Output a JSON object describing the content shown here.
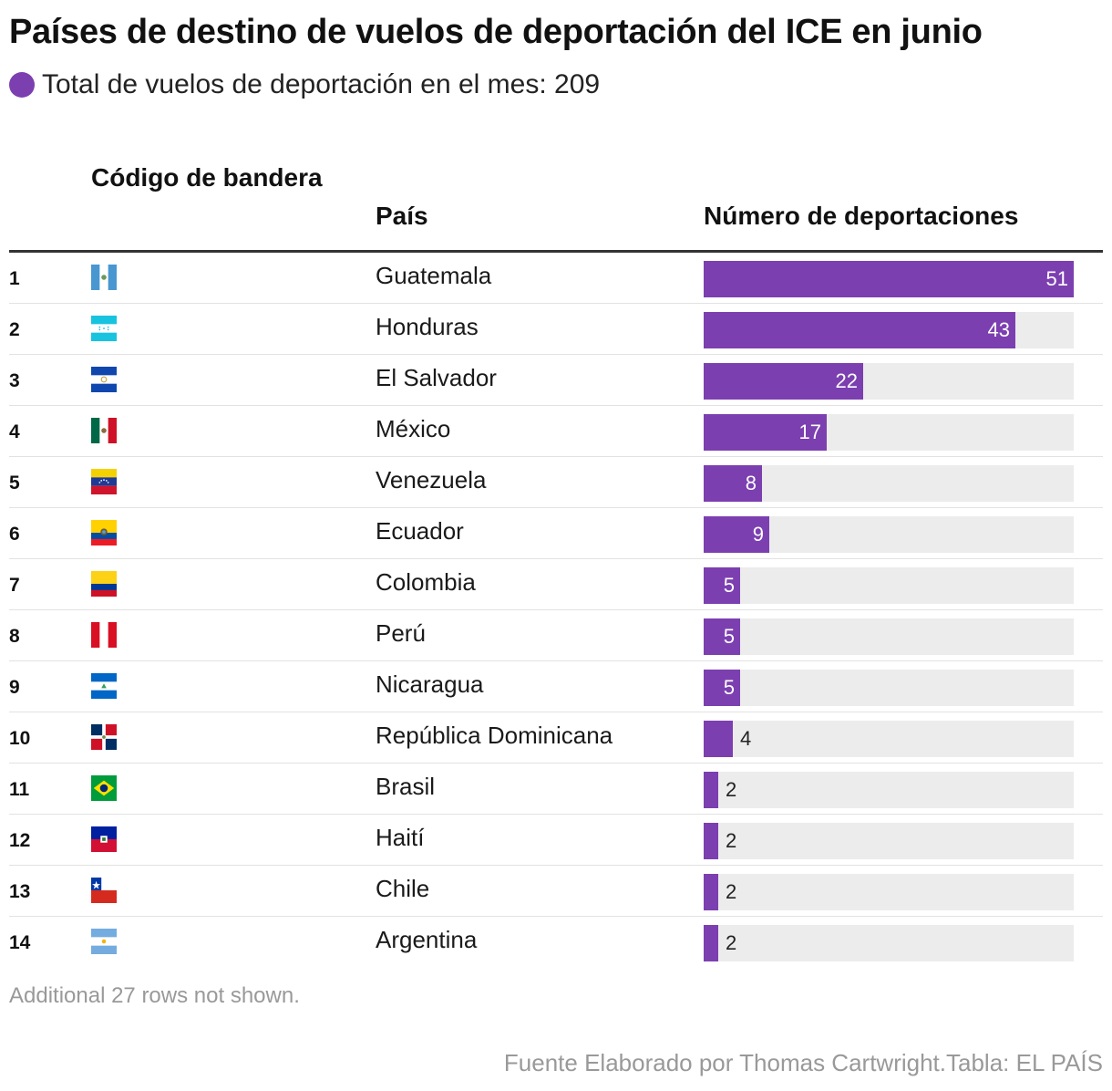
{
  "header": {
    "title": "Países de destino de vuelos de deportación del ICE en junio",
    "subtitle": "Total de vuelos de deportación en el mes: 209"
  },
  "colors": {
    "bar": "#7c3fb0",
    "track": "#ececec",
    "label_inside": "#ffffff",
    "label_outside": "#222222"
  },
  "columns": {
    "flag": "Código de bandera",
    "country": "País",
    "value": "Número de deportaciones"
  },
  "footer": {
    "note": "Additional 27 rows not shown.",
    "source": "Fuente Elaborado por Thomas Cartwright.Tabla: EL PAÍS"
  },
  "chart_data": {
    "type": "bar",
    "title": "Países de destino de vuelos de deportación del ICE en junio",
    "subtitle": "Total de vuelos de deportación en el mes: 209",
    "xlabel": "Número de deportaciones",
    "ylabel": "País",
    "xlim": [
      0,
      51
    ],
    "categories": [
      "Guatemala",
      "Honduras",
      "El Salvador",
      "México",
      "Venezuela",
      "Ecuador",
      "Colombia",
      "Perú",
      "Nicaragua",
      "República Dominicana",
      "Brasil",
      "Haití",
      "Chile",
      "Argentina"
    ],
    "ranks": [
      "1",
      "2",
      "3",
      "4",
      "5",
      "6",
      "7",
      "8",
      "9",
      "10",
      "11",
      "12",
      "13",
      "14"
    ],
    "flags": [
      "flag-guatemala-icon",
      "flag-honduras-icon",
      "flag-el-salvador-icon",
      "flag-mexico-icon",
      "flag-venezuela-icon",
      "flag-ecuador-icon",
      "flag-colombia-icon",
      "flag-peru-icon",
      "flag-nicaragua-icon",
      "flag-dominican-republic-icon",
      "flag-brazil-icon",
      "flag-haiti-icon",
      "flag-chile-icon",
      "flag-argentina-icon"
    ],
    "values": [
      51,
      43,
      22,
      17,
      8,
      9,
      5,
      5,
      5,
      4,
      2,
      2,
      2,
      2
    ]
  }
}
